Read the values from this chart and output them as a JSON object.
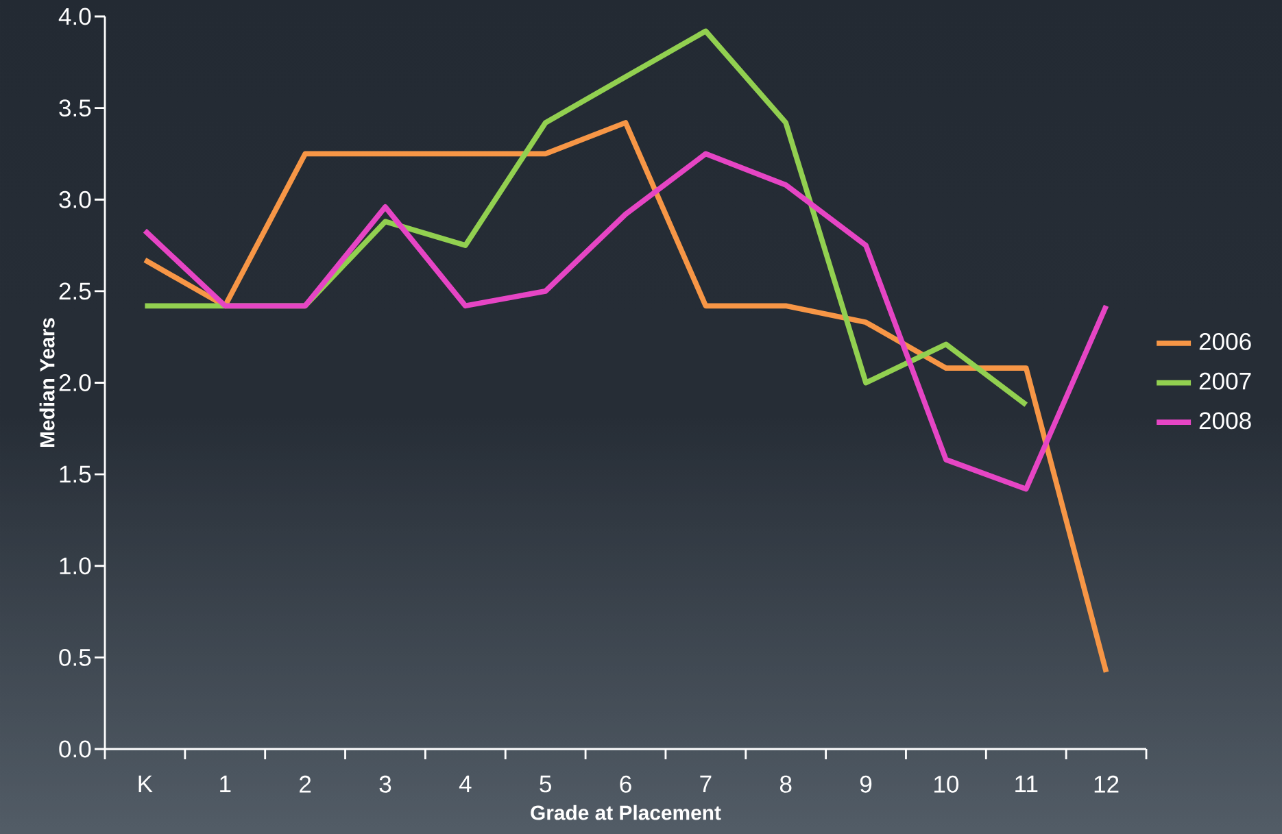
{
  "chart_data": {
    "type": "line",
    "xlabel": "Grade at Placement",
    "ylabel": "Median Years",
    "categories": [
      "K",
      "1",
      "2",
      "3",
      "4",
      "5",
      "6",
      "7",
      "8",
      "9",
      "10",
      "11",
      "12"
    ],
    "series": [
      {
        "name": "2006",
        "color": "#f79646",
        "values": [
          2.67,
          2.42,
          3.25,
          3.25,
          3.25,
          3.25,
          3.42,
          2.42,
          2.42,
          2.33,
          2.08,
          2.08,
          0.42
        ]
      },
      {
        "name": "2007",
        "color": "#92d050",
        "values": [
          2.42,
          2.42,
          2.42,
          2.88,
          2.75,
          3.42,
          3.67,
          3.92,
          3.42,
          2.0,
          2.21,
          1.88,
          null
        ]
      },
      {
        "name": "2008",
        "color": "#e645c4",
        "values": [
          2.83,
          2.42,
          2.42,
          2.96,
          2.42,
          2.5,
          2.92,
          3.25,
          3.08,
          2.75,
          1.58,
          1.42,
          2.42
        ]
      }
    ],
    "ylim": [
      0,
      4
    ],
    "yticks": [
      {
        "value": 0,
        "label": "0.0"
      },
      {
        "value": 0.5,
        "label": "0.5"
      },
      {
        "value": 1,
        "label": "1.0"
      },
      {
        "value": 1.5,
        "label": "1.5"
      },
      {
        "value": 2,
        "label": "2.0"
      },
      {
        "value": 2.5,
        "label": "2.5"
      },
      {
        "value": 3,
        "label": "3.0"
      },
      {
        "value": 3.5,
        "label": "3.5"
      },
      {
        "value": 4,
        "label": "4.0"
      }
    ],
    "grid": false,
    "legend": "right",
    "marker": "none",
    "line_style": "solid"
  }
}
